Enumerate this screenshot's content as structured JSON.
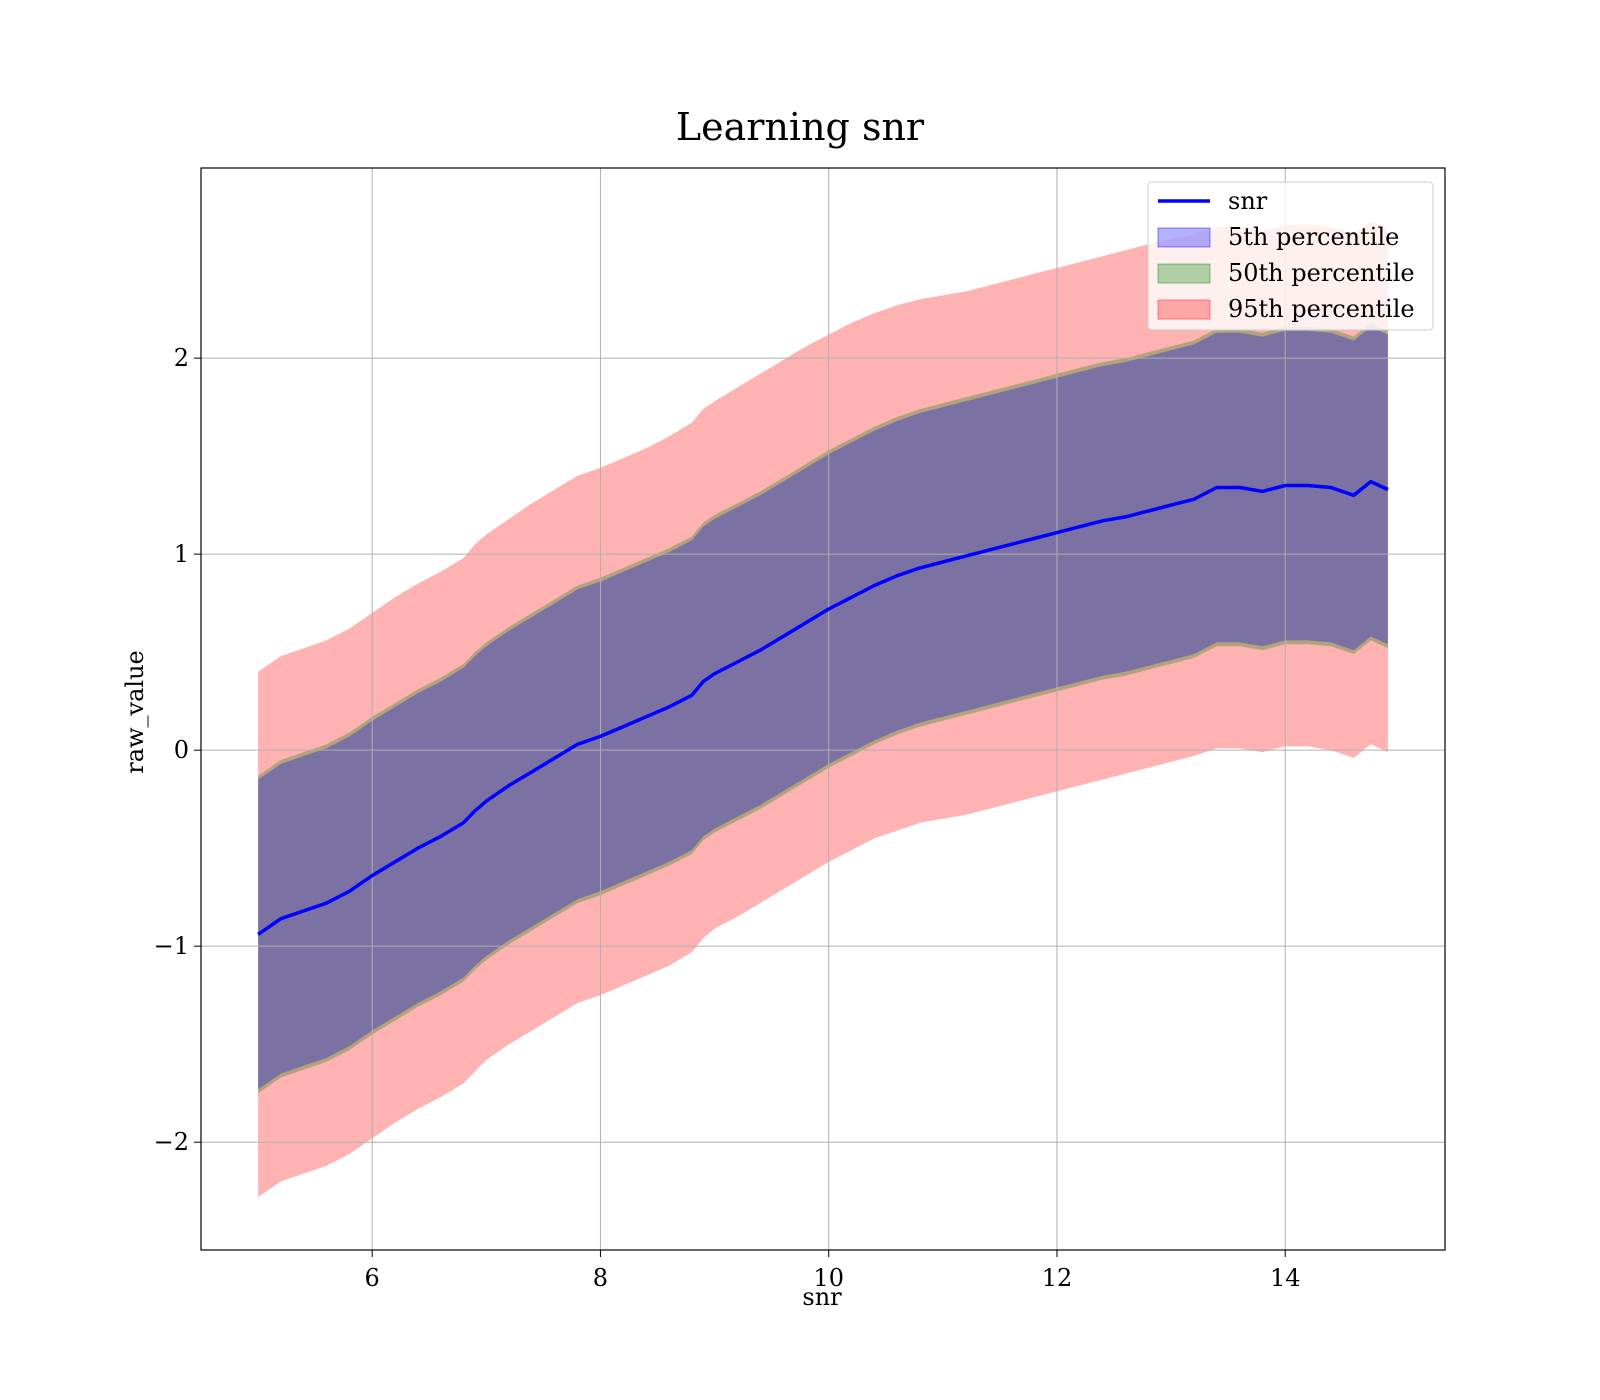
{
  "chart_data": {
    "type": "area",
    "title": "Learning snr",
    "xlabel": "snr",
    "ylabel": "raw_value",
    "xlim": [
      4.5,
      15.4
    ],
    "ylim": [
      -2.55,
      2.97
    ],
    "xticks": [
      6,
      8,
      10,
      12,
      14
    ],
    "xtick_labels": [
      "6",
      "8",
      "10",
      "12",
      "14"
    ],
    "yticks": [
      -2,
      -1,
      0,
      1,
      2
    ],
    "ytick_labels": [
      "−2",
      "−1",
      "0",
      "1",
      "2"
    ],
    "grid": true,
    "legend_position": "top-right",
    "x": [
      5.0,
      5.2,
      5.4,
      5.6,
      5.8,
      6.0,
      6.2,
      6.4,
      6.6,
      6.8,
      6.9,
      7.0,
      7.2,
      7.4,
      7.6,
      7.8,
      8.0,
      8.2,
      8.4,
      8.6,
      8.8,
      8.9,
      9.0,
      9.2,
      9.4,
      9.6,
      9.8,
      10.0,
      10.2,
      10.4,
      10.6,
      10.8,
      11.0,
      11.2,
      11.4,
      11.6,
      11.8,
      12.0,
      12.2,
      12.4,
      12.6,
      12.8,
      13.0,
      13.2,
      13.4,
      13.6,
      13.8,
      14.0,
      14.2,
      14.4,
      14.6,
      14.75,
      14.9
    ],
    "series": [
      {
        "name": "snr",
        "kind": "line",
        "color": "#0000ff",
        "values": [
          -0.94,
          -0.86,
          -0.82,
          -0.78,
          -0.72,
          -0.64,
          -0.57,
          -0.5,
          -0.44,
          -0.37,
          -0.31,
          -0.26,
          -0.18,
          -0.11,
          -0.04,
          0.03,
          0.07,
          0.12,
          0.17,
          0.22,
          0.28,
          0.35,
          0.39,
          0.45,
          0.51,
          0.58,
          0.65,
          0.72,
          0.78,
          0.84,
          0.89,
          0.93,
          0.96,
          0.99,
          1.02,
          1.05,
          1.08,
          1.11,
          1.14,
          1.17,
          1.19,
          1.22,
          1.25,
          1.28,
          1.34,
          1.34,
          1.32,
          1.35,
          1.35,
          1.34,
          1.3,
          1.37,
          1.33
        ]
      },
      {
        "name": "5th percentile",
        "kind": "band",
        "color": "#0000ff",
        "opacity": 0.3,
        "lower": [
          -1.73,
          -1.65,
          -1.61,
          -1.57,
          -1.51,
          -1.43,
          -1.36,
          -1.29,
          -1.23,
          -1.16,
          -1.1,
          -1.05,
          -0.97,
          -0.9,
          -0.83,
          -0.76,
          -0.72,
          -0.67,
          -0.62,
          -0.57,
          -0.51,
          -0.44,
          -0.4,
          -0.34,
          -0.28,
          -0.21,
          -0.14,
          -0.07,
          -0.01,
          0.05,
          0.1,
          0.14,
          0.17,
          0.2,
          0.23,
          0.26,
          0.29,
          0.32,
          0.35,
          0.38,
          0.4,
          0.43,
          0.46,
          0.49,
          0.55,
          0.55,
          0.53,
          0.56,
          0.56,
          0.55,
          0.51,
          0.58,
          0.54
        ],
        "upper": [
          -0.15,
          -0.07,
          -0.03,
          0.01,
          0.07,
          0.15,
          0.22,
          0.29,
          0.35,
          0.42,
          0.48,
          0.53,
          0.61,
          0.68,
          0.75,
          0.82,
          0.86,
          0.91,
          0.96,
          1.01,
          1.07,
          1.14,
          1.18,
          1.24,
          1.3,
          1.37,
          1.44,
          1.51,
          1.57,
          1.63,
          1.68,
          1.72,
          1.75,
          1.78,
          1.81,
          1.84,
          1.87,
          1.9,
          1.93,
          1.96,
          1.98,
          2.01,
          2.04,
          2.07,
          2.13,
          2.13,
          2.11,
          2.14,
          2.14,
          2.13,
          2.09,
          2.16,
          2.12
        ]
      },
      {
        "name": "50th percentile",
        "kind": "band",
        "color": "#008000",
        "opacity": 0.3,
        "lower": [
          -1.75,
          -1.67,
          -1.63,
          -1.59,
          -1.53,
          -1.45,
          -1.38,
          -1.31,
          -1.25,
          -1.18,
          -1.12,
          -1.07,
          -0.99,
          -0.92,
          -0.85,
          -0.78,
          -0.74,
          -0.69,
          -0.64,
          -0.59,
          -0.53,
          -0.46,
          -0.42,
          -0.36,
          -0.3,
          -0.23,
          -0.16,
          -0.09,
          -0.03,
          0.03,
          0.08,
          0.12,
          0.15,
          0.18,
          0.21,
          0.24,
          0.27,
          0.3,
          0.33,
          0.36,
          0.38,
          0.41,
          0.44,
          0.47,
          0.53,
          0.53,
          0.51,
          0.54,
          0.54,
          0.53,
          0.49,
          0.56,
          0.52
        ],
        "upper": [
          -0.13,
          -0.05,
          -0.01,
          0.03,
          0.09,
          0.17,
          0.24,
          0.31,
          0.37,
          0.44,
          0.5,
          0.55,
          0.63,
          0.7,
          0.77,
          0.84,
          0.88,
          0.93,
          0.98,
          1.03,
          1.09,
          1.16,
          1.2,
          1.26,
          1.32,
          1.39,
          1.46,
          1.53,
          1.59,
          1.65,
          1.7,
          1.74,
          1.77,
          1.8,
          1.83,
          1.86,
          1.89,
          1.92,
          1.95,
          1.98,
          2.0,
          2.03,
          2.06,
          2.09,
          2.15,
          2.15,
          2.13,
          2.16,
          2.16,
          2.15,
          2.11,
          2.18,
          2.14
        ]
      },
      {
        "name": "95th percentile",
        "kind": "band",
        "color": "#ff0000",
        "opacity": 0.3,
        "lower": [
          -2.28,
          -2.2,
          -2.16,
          -2.12,
          -2.06,
          -1.98,
          -1.9,
          -1.83,
          -1.77,
          -1.7,
          -1.64,
          -1.58,
          -1.5,
          -1.43,
          -1.36,
          -1.29,
          -1.25,
          -1.2,
          -1.15,
          -1.1,
          -1.03,
          -0.96,
          -0.91,
          -0.85,
          -0.78,
          -0.71,
          -0.64,
          -0.57,
          -0.51,
          -0.45,
          -0.41,
          -0.37,
          -0.35,
          -0.33,
          -0.3,
          -0.27,
          -0.24,
          -0.21,
          -0.18,
          -0.15,
          -0.12,
          -0.09,
          -0.06,
          -0.03,
          0.01,
          0.01,
          -0.01,
          0.02,
          0.02,
          0.0,
          -0.04,
          0.03,
          -0.01
        ],
        "upper": [
          0.4,
          0.48,
          0.52,
          0.56,
          0.62,
          0.7,
          0.78,
          0.85,
          0.91,
          0.98,
          1.05,
          1.1,
          1.18,
          1.26,
          1.33,
          1.4,
          1.44,
          1.49,
          1.54,
          1.6,
          1.67,
          1.74,
          1.78,
          1.85,
          1.92,
          1.99,
          2.06,
          2.12,
          2.18,
          2.23,
          2.27,
          2.3,
          2.32,
          2.34,
          2.37,
          2.4,
          2.43,
          2.46,
          2.49,
          2.52,
          2.55,
          2.58,
          2.61,
          2.63,
          2.67,
          2.67,
          2.65,
          2.68,
          2.68,
          2.67,
          2.63,
          2.7,
          2.66
        ]
      }
    ],
    "legend": [
      "snr",
      "5th percentile",
      "50th percentile",
      "95th percentile"
    ]
  }
}
